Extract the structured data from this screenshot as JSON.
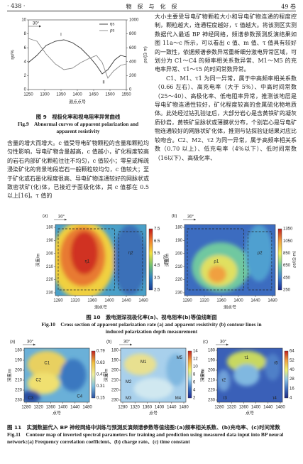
{
  "header": {
    "page": "· 438 ·",
    "journal": "物　探　与　化　探",
    "volume": "49 卷"
  },
  "left_text": "含量的增大而增大。c 值受导电矿物颗粒的含量和颗粒均匀性影响，导电矿物含量越高，c 值越小，矿化程度较高的岩石内部矿化颗粒往往不均匀，c 值较小；零星或稀疏浸染矿化的背景地段岩石一般颗粒较均匀，c 值较大；至于矿化或石墨化程度很高、导电矿物连通较好的网脉状或致密状矿(化)体，已接近于面极化体，其 c 值都在 0.5 以上[16]。τ 值的",
  "right_text": [
    "大小主要受导电矿物颗粒大小和导电矿物连通的程度控制，颗粒越大，连通程度越好，τ 值越大。将该测区实测数据代入最适 BP 神经网络，频谱参数预测反演结果如图 11a～c 所示，可以看出 c 值、m 值、τ 值具有较好的一致性，依据频谱参数异常重新细分激电异常区域，可划分为 C1～C4 的频率相关系数异常、M1～M5 的充电率异常、τ1～τ5 的时间常数异常。",
    "C1、M1、τ1 为同一异常，属于中高频率相关系数（0.66 左右）、高充电率（大于 5%）、中高时间常数（25～40）、高极化率、低电阻率异常，推测该地层是导电矿物连通性较好，矿化程度较高的金属硫化物地质体。此处经过钻孔验证后，大部分岩心是含黄铁矿的凝灰质砂岩，黄铁矿呈脉状或薄膜状分布，个别岩心是导电矿物连通较好的网脉状矿化体，推测与钻探验证结果对应比较吻合。C2、M2、τ2 为同一异常，属于高频率相关系数（0.70 以上）、低充电率（4%以下）、低时间常数（16以下）、高极化率、"
  ],
  "figure9": {
    "note": "30°",
    "curve_labels": [
      "I",
      "II"
    ],
    "legend": [
      "ηs",
      "ρs"
    ],
    "ylabel": "ηs/%",
    "y2label": "ρs/(Ω·m)",
    "xlabel": "测点点号",
    "yticks": [
      0,
      2,
      4,
      6,
      8,
      10
    ],
    "y2ticks": [
      0,
      200,
      400,
      600,
      800,
      1000
    ],
    "xticks": [
      1250,
      1300,
      1350,
      1400,
      1450,
      1500,
      1550
    ],
    "caption_cn": "图 9　视极化率和视电阻率异常曲线",
    "caption_en": "Fig.9　Abnormal curves of apparent polarization and apparent resistivity"
  },
  "figure10": {
    "panels": [
      {
        "label": "(a)",
        "note": "30°",
        "ylabel": "深度/m",
        "xlabel": "测点号",
        "yticks": [
          180,
          190,
          200,
          210,
          220,
          230
        ],
        "xticks": [
          1280,
          1320,
          1360,
          1400,
          1440,
          1480
        ],
        "cbar_ticks": [
          7.5,
          6.5,
          5.5,
          4.5,
          3.5,
          2.5
        ],
        "cbar_label": "ηs/%",
        "zones": [
          "η1",
          "η2"
        ]
      },
      {
        "label": "(b)",
        "note": "30°",
        "ylabel": "深度/m",
        "xlabel": "测点号",
        "yticks": [
          180,
          190,
          200,
          210,
          220,
          230
        ],
        "xticks": [
          1280,
          1320,
          1360,
          1400,
          1440,
          1480
        ],
        "cbar_ticks": [
          1350,
          1050,
          850,
          650,
          450,
          250
        ],
        "cbar_label": "ρs/(Ω·m)",
        "zones": [
          "ρ1",
          "ρ2"
        ]
      }
    ],
    "caption_cn": "图 10　激电测深视极化率(a)、视电阻率(b)等值线断面",
    "caption_en": "Fig.10　Cross section of apparent polarization rate (a) and apparent resistivity (b) contour lines in induced polarization depth measurement"
  },
  "figure11": {
    "panels": [
      {
        "label": "(a)",
        "note": "30°",
        "ylabel": "深度/m",
        "xlabel": "点号",
        "yticks": [
          180,
          190,
          200,
          210,
          220,
          230
        ],
        "xticks": [
          1280,
          1320,
          1360,
          1400,
          1440,
          1480
        ],
        "cbar_ticks": [
          0.79,
          0.63,
          0.47,
          0.31,
          0.15
        ],
        "cbar_label": "c",
        "zones": [
          "C1",
          "C2",
          "C3",
          "C4"
        ]
      },
      {
        "label": "(b)",
        "note": "30°",
        "ylabel": "深度/m",
        "xlabel": "点号",
        "yticks": [
          180,
          190,
          200,
          210,
          220,
          230
        ],
        "xticks": [
          1280,
          1320,
          1360,
          1400,
          1440,
          1480
        ],
        "cbar_ticks": [
          14,
          12,
          10,
          8,
          6,
          4,
          2
        ],
        "cbar_label": "m/%",
        "zones": [
          "M1",
          "M2",
          "M3",
          "M4",
          "M5"
        ]
      },
      {
        "label": "(c)",
        "note": "30°",
        "ylabel": "深度/m",
        "xlabel": "点号",
        "yticks": [
          180,
          190,
          200,
          210,
          220,
          230
        ],
        "xticks": [
          1280,
          1320,
          1360,
          1400,
          1440,
          1480
        ],
        "cbar_ticks": [
          64,
          52,
          40,
          28,
          16,
          4
        ],
        "cbar_label": "τ/s",
        "zones": [
          "τ1",
          "τ2",
          "τ3",
          "τ4",
          "τ5"
        ]
      }
    ],
    "caption_cn": "图 11　实测数据代入 BP 神经网络中训练与预测反演频谱参数等值线图:(a)频率相关系数、(b)充电率、(c)时间常数",
    "caption_en": "Fig.11　Contour map of inverted spectral parameters for training and prediction using measured data input into BP neural network:(a) Frequency correlation coefficient、(b) charge rate、(c) time constant"
  }
}
